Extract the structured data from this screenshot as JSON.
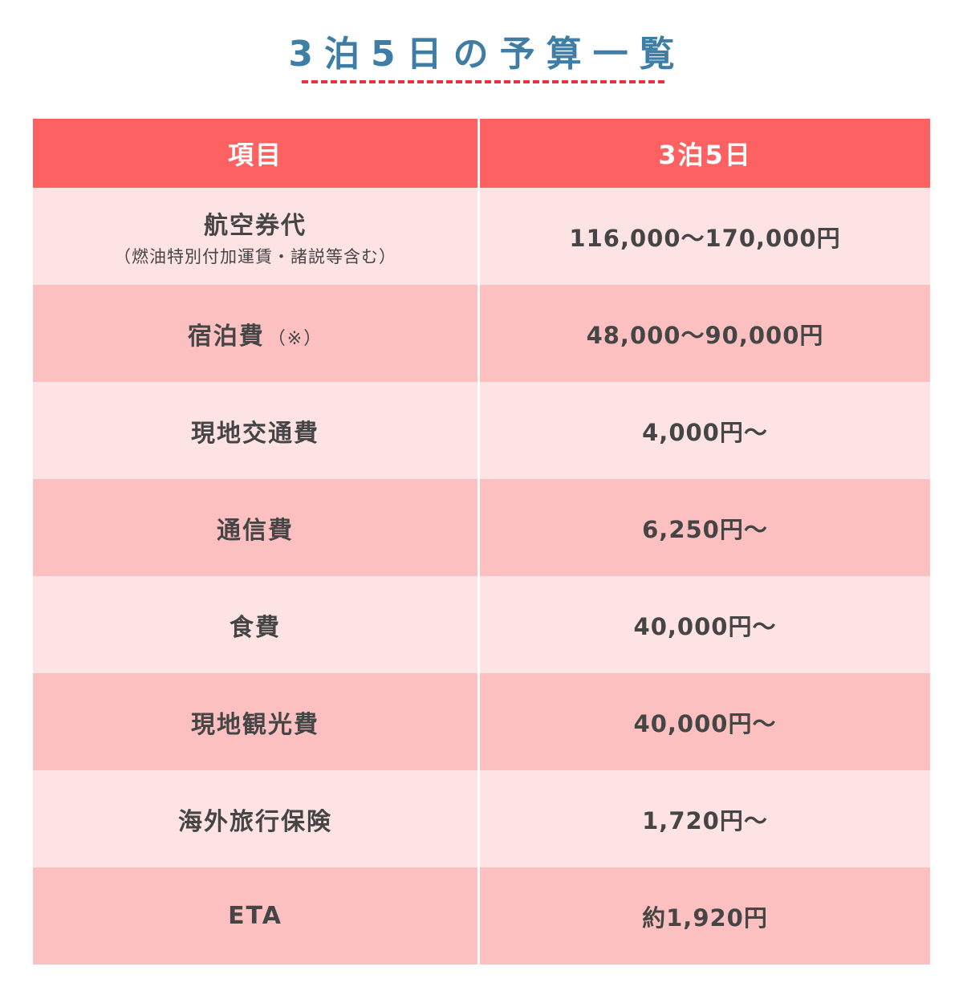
{
  "title": "3泊5日の予算一覧",
  "table": {
    "headers": [
      "項目",
      "3泊5日"
    ],
    "rows": [
      {
        "item": "航空券代",
        "sub": "（燃油特別付加運賃・諸説等含む）",
        "note": "",
        "value": "116,000〜170,000円"
      },
      {
        "item": "宿泊費",
        "sub": "",
        "note": "（※）",
        "value": "48,000〜90,000円"
      },
      {
        "item": "現地交通費",
        "sub": "",
        "note": "",
        "value": "4,000円〜"
      },
      {
        "item": "通信費",
        "sub": "",
        "note": "",
        "value": "6,250円〜"
      },
      {
        "item": "食費",
        "sub": "",
        "note": "",
        "value": "40,000円〜"
      },
      {
        "item": "現地観光費",
        "sub": "",
        "note": "",
        "value": "40,000円〜"
      },
      {
        "item": "海外旅行保険",
        "sub": "",
        "note": "",
        "value": "1,720円〜"
      },
      {
        "item": "ETA",
        "sub": "",
        "note": "",
        "value": "約1,920円"
      }
    ]
  },
  "colors": {
    "title": "#3e7ea6",
    "underline": "#ee2f3c",
    "header_bg": "#fe6161",
    "row_light": "#fee3e4",
    "row_dark": "#fcc0c1"
  }
}
